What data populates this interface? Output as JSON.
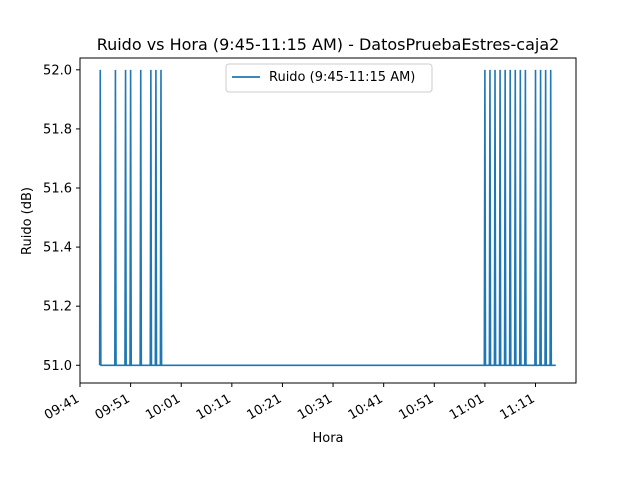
{
  "chart_data": {
    "type": "line",
    "title": "Ruido vs Hora (9:45-11:15 AM) - DatosPruebaEstres-caja2",
    "xlabel": "Hora",
    "ylabel": "Ruido (dB)",
    "xlim": [
      "09:41",
      "11:19"
    ],
    "ylim": [
      50.94,
      52.04
    ],
    "x_ticks": [
      "09:41",
      "09:51",
      "10:01",
      "10:11",
      "10:21",
      "10:31",
      "10:41",
      "10:51",
      "11:01",
      "11:11"
    ],
    "y_ticks": [
      "51.0",
      "51.2",
      "51.4",
      "51.6",
      "51.8",
      "52.0"
    ],
    "legend_position": "top-center",
    "grid": false,
    "series": [
      {
        "name": "Ruido (9:45-11:15 AM)",
        "color": "#1f77b4",
        "baseline": 51.0,
        "start": "09:45",
        "end": "11:15",
        "spikes": [
          {
            "x": "09:45",
            "y": 52.0
          },
          {
            "x": "09:48",
            "y": 52.0
          },
          {
            "x": "09:50",
            "y": 52.0
          },
          {
            "x": "09:51",
            "y": 52.0
          },
          {
            "x": "09:53",
            "y": 52.0
          },
          {
            "x": "09:55",
            "y": 52.0
          },
          {
            "x": "09:56",
            "y": 52.0
          },
          {
            "x": "09:57",
            "y": 52.0
          },
          {
            "x": "11:01",
            "y": 52.0
          },
          {
            "x": "11:02",
            "y": 52.0
          },
          {
            "x": "11:03",
            "y": 52.0
          },
          {
            "x": "11:04",
            "y": 52.0
          },
          {
            "x": "11:05",
            "y": 52.0
          },
          {
            "x": "11:06",
            "y": 52.0
          },
          {
            "x": "11:07",
            "y": 52.0
          },
          {
            "x": "11:08",
            "y": 52.0
          },
          {
            "x": "11:09",
            "y": 52.0
          },
          {
            "x": "11:11",
            "y": 52.0
          },
          {
            "x": "11:12",
            "y": 52.0
          },
          {
            "x": "11:13",
            "y": 52.0
          },
          {
            "x": "11:14",
            "y": 52.0
          }
        ]
      }
    ]
  }
}
